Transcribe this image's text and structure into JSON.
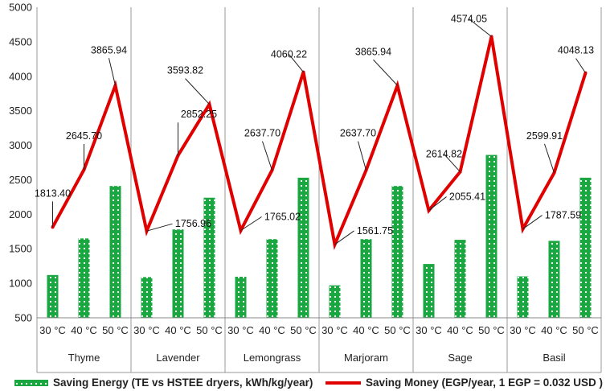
{
  "chart_data": {
    "type": "bar",
    "ylim": [
      500,
      5000
    ],
    "yticks": [
      500,
      1000,
      1500,
      2000,
      2500,
      3000,
      3500,
      4000,
      4500,
      5000
    ],
    "grid": "vertical group separators only",
    "legend_position": "bottom",
    "categories": [
      "30 °C",
      "40 °C",
      "50 °C",
      "30 °C",
      "40 °C",
      "50 °C",
      "30 °C",
      "40 °C",
      "50 °C",
      "30 °C",
      "40 °C",
      "50 °C",
      "30 °C",
      "40 °C",
      "50 °C",
      "30 °C",
      "40 °C",
      "50 °C"
    ],
    "groups": [
      "Thyme",
      "Lavender",
      "Lemongrass",
      "Marjoram",
      "Sage",
      "Basil"
    ],
    "series": [
      {
        "name": "Saving Energy (TE vs HSTEE dryers, kWh/kg/year)",
        "type": "bar",
        "color": "#1aa640",
        "values": [
          1120,
          1650,
          2410,
          1090,
          1780,
          2240,
          1095,
          1640,
          2530,
          970,
          1640,
          2410,
          1280,
          1630,
          2860,
          1100,
          1615,
          2530
        ]
      },
      {
        "name": "Saving Money (EGP/year, 1 EGP = 0.032 USD )",
        "type": "line",
        "color": "#e00000",
        "values": [
          1813.4,
          2645.7,
          3865.94,
          1756.96,
          2852.25,
          3593.82,
          1765.02,
          2637.7,
          4060.22,
          1561.75,
          2637.7,
          3865.94,
          2055.41,
          2614.82,
          4574.05,
          1787.59,
          2599.91,
          4048.13
        ],
        "labels": [
          "1813.40",
          "2645.70",
          "3865.94",
          "1756.96",
          "2852.25",
          "3593.82",
          "1765.02",
          "2637.70",
          "4060.22",
          "1561.75",
          "2637.70",
          "3865.94",
          "2055.41",
          "2614.82",
          "4574.05",
          "1787.59",
          "2599.91",
          "4048.13"
        ]
      }
    ]
  }
}
